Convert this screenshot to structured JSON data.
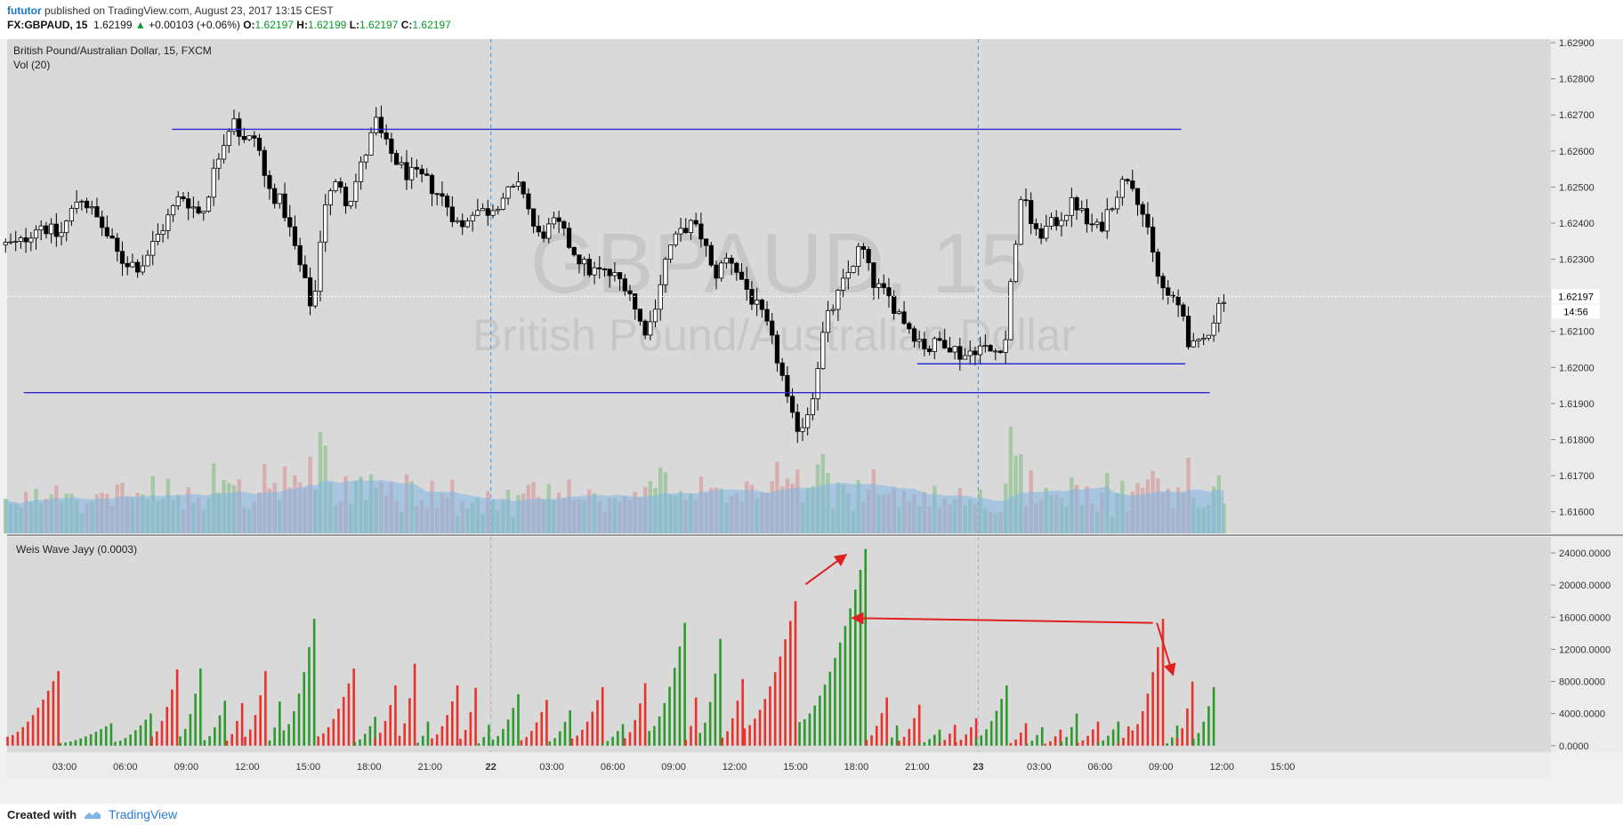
{
  "header": {
    "author": "fututor",
    "published": " published on TradingView.com, August 23, 2017 13:15 CEST"
  },
  "quote": {
    "symbol": "FX:GBPAUD, 15",
    "last": "1.62199",
    "change": "+0.00103 (+0.06%)",
    "open_label": "O:",
    "open": "1.62197",
    "high_label": "H:",
    "high": "1.62199",
    "low_label": "L:",
    "low": "1.62197",
    "close_label": "C:",
    "close": "1.62197"
  },
  "colors": {
    "bg": "#d9d9d9",
    "up_candle": "#ffffff",
    "down_candle": "#000000",
    "level_line": "#2b2bd6",
    "vol_up": "#9fc79f",
    "vol_down": "#d7aaa8",
    "vol_ma": "#7fb5e6",
    "weis_up": "#2e9a2e",
    "weis_down": "#e8322b",
    "arrow": "#e02020",
    "session_line": "#4a90d9"
  },
  "chart_data": [
    {
      "type": "candlestick",
      "title": "British Pound/Australian Dollar, 15, FXCM",
      "indicator_label": "Vol (20)",
      "watermark_symbol": "GBPAUD, 15",
      "watermark_name": "British Pound/Australian Dollar",
      "y_ticks": [
        "1.62900",
        "1.62800",
        "1.62700",
        "1.62600",
        "1.62500",
        "1.62400",
        "1.62300",
        "1.62100",
        "1.62000",
        "1.61900",
        "1.61800",
        "1.61700",
        "1.61600"
      ],
      "ylim": [
        1.6154,
        1.6291
      ],
      "last_price_label": "1.62197",
      "countdown": "14:56",
      "horizontal_levels": [
        {
          "price": 1.6266,
          "from_hour": 8.3,
          "to_hour": 58.0
        },
        {
          "price": 1.6201,
          "from_hour": 45.0,
          "to_hour": 58.2
        },
        {
          "price": 1.6193,
          "from_hour": 1.0,
          "to_hour": 59.4
        }
      ],
      "session_breaks_hour": [
        24,
        48
      ],
      "price_path": [
        [
          1.0,
          1.6234
        ],
        [
          2.0,
          1.624
        ],
        [
          3.0,
          1.6236
        ],
        [
          4.0,
          1.6248
        ],
        [
          5.0,
          1.624
        ],
        [
          6.0,
          1.623
        ],
        [
          7.0,
          1.6228
        ],
        [
          8.0,
          1.6238
        ],
        [
          9.0,
          1.6248
        ],
        [
          10.0,
          1.6242
        ],
        [
          11.0,
          1.6262
        ],
        [
          11.6,
          1.627
        ],
        [
          12.0,
          1.6262
        ],
        [
          12.7,
          1.6264
        ],
        [
          13.2,
          1.625
        ],
        [
          14.0,
          1.6245
        ],
        [
          15.0,
          1.6225
        ],
        [
          15.5,
          1.6215
        ],
        [
          16.0,
          1.6245
        ],
        [
          16.8,
          1.6252
        ],
        [
          17.2,
          1.6245
        ],
        [
          18.0,
          1.6258
        ],
        [
          18.6,
          1.6268
        ],
        [
          19.0,
          1.6262
        ],
        [
          20.0,
          1.6254
        ],
        [
          21.0,
          1.6252
        ],
        [
          22.0,
          1.6246
        ],
        [
          22.8,
          1.6238
        ],
        [
          23.3,
          1.6244
        ],
        [
          24.0,
          1.6243
        ],
        [
          25.0,
          1.6248
        ],
        [
          25.8,
          1.625
        ],
        [
          26.5,
          1.6236
        ],
        [
          27.5,
          1.624
        ],
        [
          28.0,
          1.6235
        ],
        [
          29.0,
          1.6227
        ],
        [
          30.0,
          1.6226
        ],
        [
          31.0,
          1.6223
        ],
        [
          31.5,
          1.6213
        ],
        [
          32.0,
          1.621
        ],
        [
          33.0,
          1.6233
        ],
        [
          34.0,
          1.624
        ],
        [
          34.7,
          1.6236
        ],
        [
          35.2,
          1.6225
        ],
        [
          36.0,
          1.6231
        ],
        [
          37.0,
          1.622
        ],
        [
          37.8,
          1.6212
        ],
        [
          38.5,
          1.62
        ],
        [
          39.0,
          1.6186
        ],
        [
          39.5,
          1.6183
        ],
        [
          40.0,
          1.619
        ],
        [
          40.7,
          1.6212
        ],
        [
          41.2,
          1.6218
        ],
        [
          42.0,
          1.6228
        ],
        [
          42.5,
          1.6234
        ],
        [
          43.0,
          1.6224
        ],
        [
          44.0,
          1.6218
        ],
        [
          45.0,
          1.621
        ],
        [
          45.8,
          1.6205
        ],
        [
          46.5,
          1.6208
        ],
        [
          47.5,
          1.6203
        ],
        [
          48.2,
          1.6206
        ],
        [
          49.0,
          1.6204
        ],
        [
          49.6,
          1.6208
        ],
        [
          50.0,
          1.6232
        ],
        [
          50.5,
          1.625
        ],
        [
          51.0,
          1.6236
        ],
        [
          52.0,
          1.624
        ],
        [
          53.0,
          1.6246
        ],
        [
          53.6,
          1.624
        ],
        [
          54.2,
          1.6238
        ],
        [
          55.0,
          1.6248
        ],
        [
          55.7,
          1.6254
        ],
        [
          56.3,
          1.6244
        ],
        [
          56.8,
          1.6232
        ],
        [
          57.2,
          1.6223
        ],
        [
          57.8,
          1.6218
        ],
        [
          58.3,
          1.6216
        ],
        [
          58.7,
          1.6205
        ],
        [
          59.2,
          1.6206
        ],
        [
          59.8,
          1.6213
        ],
        [
          60.3,
          1.622
        ]
      ]
    },
    {
      "type": "bar",
      "title": "Weis Wave Jayy (0.0003)",
      "y_ticks": [
        "24000.0000",
        "20000.0000",
        "16000.0000",
        "12000.0000",
        "8000.0000",
        "4000.0000",
        "0.0000"
      ],
      "ylim": [
        -800,
        26000
      ],
      "waves": [
        {
          "dir": "down",
          "start": 0.2,
          "end": 2.7,
          "peak": 9300
        },
        {
          "dir": "up",
          "start": 2.8,
          "end": 5.4,
          "peak": 2800
        },
        {
          "dir": "up",
          "start": 5.5,
          "end": 7.2,
          "peak": 4000
        },
        {
          "dir": "down",
          "start": 7.3,
          "end": 8.6,
          "peak": 9500
        },
        {
          "dir": "up",
          "start": 8.7,
          "end": 9.8,
          "peak": 9600
        },
        {
          "dir": "up",
          "start": 9.9,
          "end": 10.9,
          "peak": 5600
        },
        {
          "dir": "down",
          "start": 11.0,
          "end": 11.8,
          "peak": 5300
        },
        {
          "dir": "down",
          "start": 11.9,
          "end": 13.0,
          "peak": 9300
        },
        {
          "dir": "up",
          "start": 13.1,
          "end": 13.7,
          "peak": 5500
        },
        {
          "dir": "up",
          "start": 13.8,
          "end": 15.4,
          "peak": 15800
        },
        {
          "dir": "down",
          "start": 15.5,
          "end": 17.2,
          "peak": 9600
        },
        {
          "dir": "up",
          "start": 17.3,
          "end": 18.2,
          "peak": 3600
        },
        {
          "dir": "down",
          "start": 18.3,
          "end": 19.4,
          "peak": 7500
        },
        {
          "dir": "down",
          "start": 19.5,
          "end": 20.3,
          "peak": 10200
        },
        {
          "dir": "up",
          "start": 20.4,
          "end": 21.0,
          "peak": 3000
        },
        {
          "dir": "down",
          "start": 21.1,
          "end": 22.4,
          "peak": 7500
        },
        {
          "dir": "down",
          "start": 22.5,
          "end": 23.3,
          "peak": 7200
        },
        {
          "dir": "up",
          "start": 23.4,
          "end": 24.0,
          "peak": 2600
        },
        {
          "dir": "up",
          "start": 24.1,
          "end": 25.4,
          "peak": 6400
        },
        {
          "dir": "down",
          "start": 25.5,
          "end": 26.8,
          "peak": 5700
        },
        {
          "dir": "up",
          "start": 26.9,
          "end": 27.9,
          "peak": 4400
        },
        {
          "dir": "down",
          "start": 28.0,
          "end": 29.4,
          "peak": 7300
        },
        {
          "dir": "up",
          "start": 29.5,
          "end": 30.5,
          "peak": 2700
        },
        {
          "dir": "down",
          "start": 30.6,
          "end": 31.7,
          "peak": 7800
        },
        {
          "dir": "up",
          "start": 31.8,
          "end": 33.5,
          "peak": 15300
        },
        {
          "dir": "down",
          "start": 33.6,
          "end": 34.2,
          "peak": 6000
        },
        {
          "dir": "up",
          "start": 34.3,
          "end": 35.3,
          "peak": 13300
        },
        {
          "dir": "down",
          "start": 35.4,
          "end": 36.4,
          "peak": 8300
        },
        {
          "dir": "down",
          "start": 36.5,
          "end": 39.1,
          "peak": 18000
        },
        {
          "dir": "up",
          "start": 39.2,
          "end": 42.4,
          "peak": 24500
        },
        {
          "dir": "down",
          "start": 42.5,
          "end": 43.4,
          "peak": 6000
        },
        {
          "dir": "up",
          "start": 43.5,
          "end": 44.0,
          "peak": 2500
        },
        {
          "dir": "down",
          "start": 44.1,
          "end": 45.0,
          "peak": 5100
        },
        {
          "dir": "up",
          "start": 45.1,
          "end": 46.0,
          "peak": 2000
        },
        {
          "dir": "down",
          "start": 46.1,
          "end": 46.8,
          "peak": 2600
        },
        {
          "dir": "down",
          "start": 46.9,
          "end": 47.8,
          "peak": 3400
        },
        {
          "dir": "up",
          "start": 47.9,
          "end": 49.5,
          "peak": 7500
        },
        {
          "dir": "down",
          "start": 49.6,
          "end": 50.3,
          "peak": 2800
        },
        {
          "dir": "up",
          "start": 50.4,
          "end": 51.2,
          "peak": 2300
        },
        {
          "dir": "down",
          "start": 51.3,
          "end": 52.0,
          "peak": 2000
        },
        {
          "dir": "up",
          "start": 52.1,
          "end": 52.8,
          "peak": 4000
        },
        {
          "dir": "down",
          "start": 52.9,
          "end": 53.8,
          "peak": 3000
        },
        {
          "dir": "up",
          "start": 53.9,
          "end": 54.8,
          "peak": 3000
        },
        {
          "dir": "down",
          "start": 54.9,
          "end": 55.5,
          "peak": 2400
        },
        {
          "dir": "down",
          "start": 55.6,
          "end": 57.2,
          "peak": 15800
        },
        {
          "dir": "up",
          "start": 57.3,
          "end": 57.7,
          "peak": 2500
        },
        {
          "dir": "down",
          "start": 57.8,
          "end": 58.5,
          "peak": 8000
        },
        {
          "dir": "up",
          "start": 58.6,
          "end": 59.6,
          "peak": 7300
        }
      ],
      "arrows": [
        {
          "from": [
            39.5,
            20100
          ],
          "to": [
            41.5,
            23800
          ]
        },
        {
          "from": [
            56.6,
            15300
          ],
          "to": [
            41.8,
            15900
          ]
        },
        {
          "from": [
            56.8,
            15300
          ],
          "to": [
            57.6,
            8800
          ]
        }
      ]
    }
  ],
  "time_axis": {
    "labels": [
      "03:00",
      "06:00",
      "09:00",
      "12:00",
      "15:00",
      "18:00",
      "21:00",
      "22",
      "03:00",
      "06:00",
      "09:00",
      "12:00",
      "15:00",
      "18:00",
      "21:00",
      "23",
      "03:00",
      "06:00",
      "09:00",
      "12:00",
      "15:00"
    ],
    "hours": [
      3,
      6,
      9,
      12,
      15,
      18,
      21,
      24,
      27,
      30,
      33,
      36,
      39,
      42,
      45,
      48,
      51,
      54,
      57,
      60,
      63
    ]
  },
  "footer": {
    "created": "Created with",
    "brand": "TradingView"
  }
}
